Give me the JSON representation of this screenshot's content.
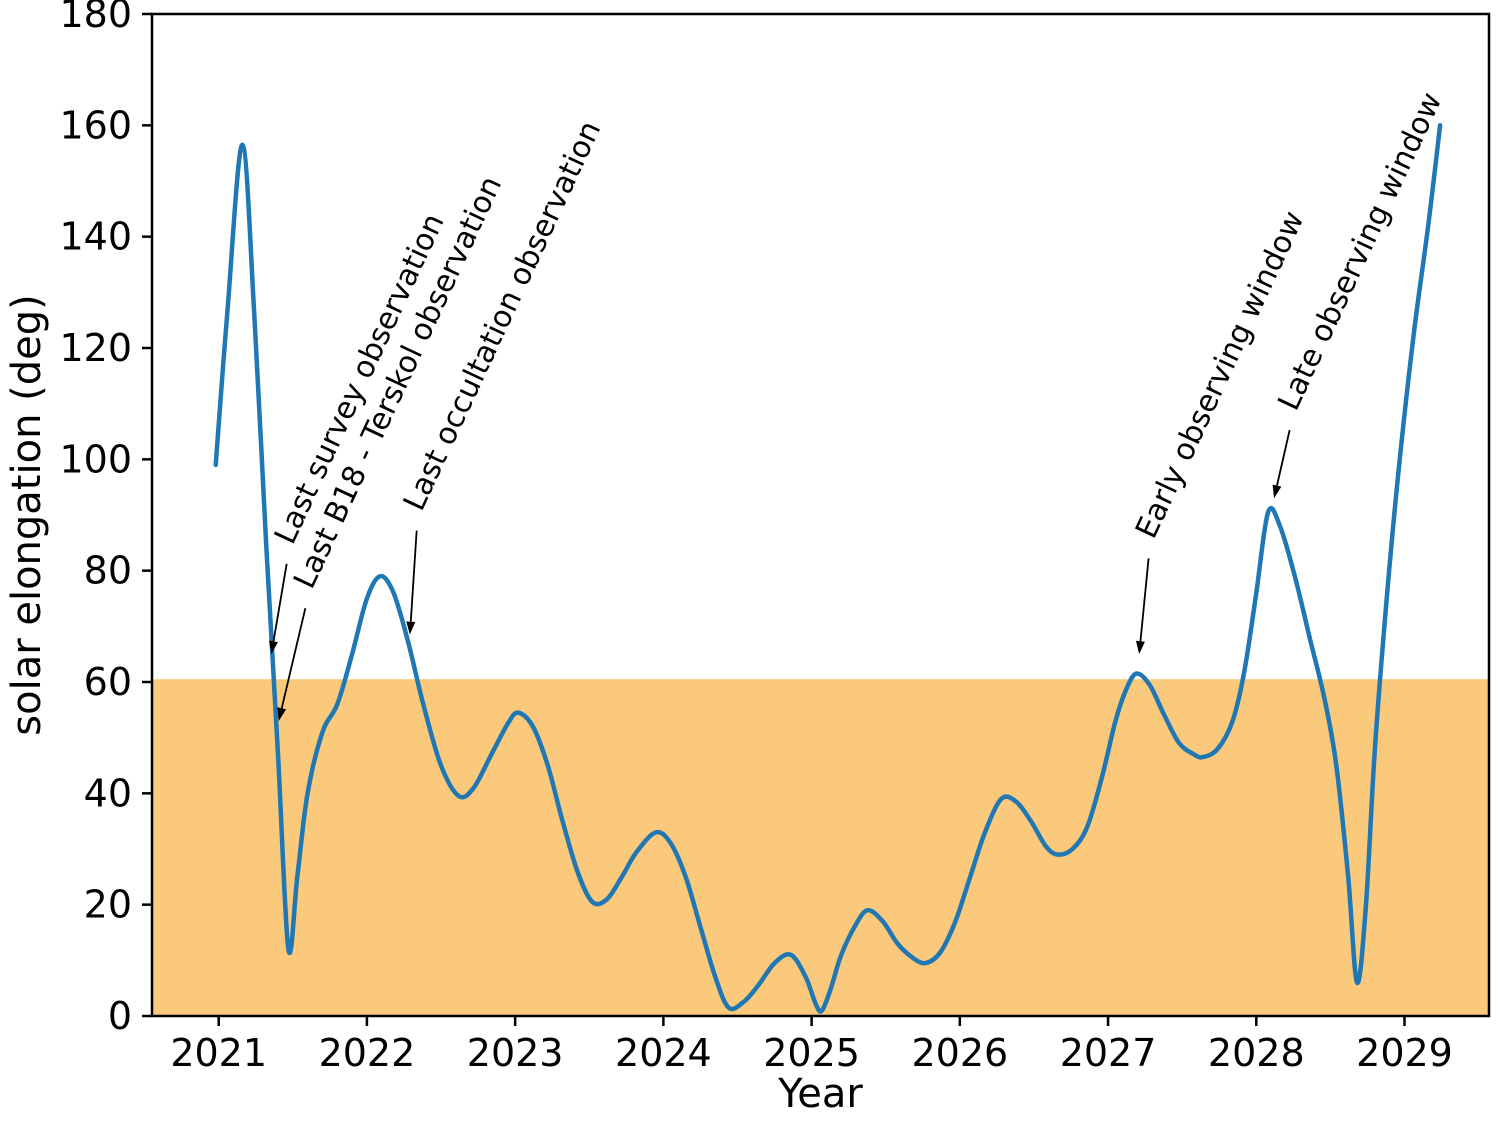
{
  "chart_data": {
    "type": "line",
    "xlabel": "Year",
    "ylabel": "solar elongation (deg)",
    "xlim": [
      2020.55,
      2029.57
    ],
    "ylim": [
      0,
      180
    ],
    "xticks": [
      2021,
      2022,
      2023,
      2024,
      2025,
      2026,
      2027,
      2028,
      2029
    ],
    "yticks": [
      0,
      20,
      40,
      60,
      80,
      100,
      120,
      140,
      160,
      180
    ],
    "grid": false,
    "legend": null,
    "line_color": "#1f77b4",
    "line_width": 4.5,
    "axis_color": "#000000",
    "shaded_region": {
      "ymin": 0,
      "ymax": 60.5,
      "color": "#fac97c"
    },
    "series": [
      {
        "name": "solar elongation",
        "points": [
          [
            2020.98,
            99
          ],
          [
            2021.06,
            127
          ],
          [
            2021.16,
            156.5
          ],
          [
            2021.24,
            126
          ],
          [
            2021.32,
            85
          ],
          [
            2021.4,
            47
          ],
          [
            2021.47,
            12
          ],
          [
            2021.53,
            25
          ],
          [
            2021.6,
            40
          ],
          [
            2021.7,
            51
          ],
          [
            2021.8,
            56
          ],
          [
            2021.9,
            65
          ],
          [
            2022.0,
            75
          ],
          [
            2022.09,
            79
          ],
          [
            2022.18,
            76
          ],
          [
            2022.28,
            67
          ],
          [
            2022.38,
            56
          ],
          [
            2022.5,
            45
          ],
          [
            2022.62,
            39.5
          ],
          [
            2022.72,
            41
          ],
          [
            2022.84,
            47
          ],
          [
            2022.95,
            52.5
          ],
          [
            2023.02,
            54.5
          ],
          [
            2023.12,
            52
          ],
          [
            2023.22,
            45
          ],
          [
            2023.32,
            35
          ],
          [
            2023.42,
            26
          ],
          [
            2023.52,
            20.5
          ],
          [
            2023.62,
            21
          ],
          [
            2023.72,
            25
          ],
          [
            2023.82,
            29.5
          ],
          [
            2023.95,
            33
          ],
          [
            2024.05,
            31
          ],
          [
            2024.15,
            25
          ],
          [
            2024.25,
            16
          ],
          [
            2024.35,
            7
          ],
          [
            2024.44,
            1.5
          ],
          [
            2024.54,
            2.5
          ],
          [
            2024.64,
            5.5
          ],
          [
            2024.75,
            9.5
          ],
          [
            2024.86,
            11
          ],
          [
            2024.96,
            7
          ],
          [
            2025.03,
            2
          ],
          [
            2025.07,
            1
          ],
          [
            2025.13,
            5
          ],
          [
            2025.2,
            11
          ],
          [
            2025.3,
            16.5
          ],
          [
            2025.38,
            19
          ],
          [
            2025.48,
            17
          ],
          [
            2025.58,
            13
          ],
          [
            2025.68,
            10.5
          ],
          [
            2025.77,
            9.5
          ],
          [
            2025.87,
            11.5
          ],
          [
            2025.97,
            17
          ],
          [
            2026.07,
            25
          ],
          [
            2026.17,
            33
          ],
          [
            2026.28,
            39
          ],
          [
            2026.38,
            38.5
          ],
          [
            2026.48,
            35
          ],
          [
            2026.58,
            30.5
          ],
          [
            2026.66,
            29
          ],
          [
            2026.76,
            30
          ],
          [
            2026.86,
            34
          ],
          [
            2026.96,
            43
          ],
          [
            2027.05,
            53
          ],
          [
            2027.12,
            58.5
          ],
          [
            2027.19,
            61.5
          ],
          [
            2027.28,
            59.5
          ],
          [
            2027.38,
            54
          ],
          [
            2027.48,
            49
          ],
          [
            2027.58,
            47
          ],
          [
            2027.64,
            46.5
          ],
          [
            2027.74,
            48
          ],
          [
            2027.84,
            53
          ],
          [
            2027.92,
            62
          ],
          [
            2028.0,
            76
          ],
          [
            2028.08,
            90.5
          ],
          [
            2028.16,
            88
          ],
          [
            2028.26,
            79
          ],
          [
            2028.36,
            68
          ],
          [
            2028.46,
            57
          ],
          [
            2028.54,
            45
          ],
          [
            2028.62,
            25
          ],
          [
            2028.68,
            6
          ],
          [
            2028.74,
            20
          ],
          [
            2028.8,
            48
          ],
          [
            2028.88,
            75
          ],
          [
            2028.96,
            98
          ],
          [
            2029.06,
            122
          ],
          [
            2029.16,
            142
          ],
          [
            2029.24,
            160
          ]
        ]
      }
    ],
    "annotations": [
      {
        "label": "Last survey observation",
        "text_xy": [
          2021.47,
          83
        ],
        "tip_xy": [
          2021.355,
          65
        ],
        "rotation": -65
      },
      {
        "label": "Last B18 - Terskol observation",
        "text_xy": [
          2021.6,
          75
        ],
        "tip_xy": [
          2021.405,
          53
        ],
        "rotation": -65
      },
      {
        "label": "Last occultation observation",
        "text_xy": [
          2022.34,
          89
        ],
        "tip_xy": [
          2022.29,
          68.5
        ],
        "rotation": -65
      },
      {
        "label": "Early observing window",
        "text_xy": [
          2027.28,
          84
        ],
        "tip_xy": [
          2027.21,
          65
        ],
        "rotation": -65
      },
      {
        "label": "Late observing window",
        "text_xy": [
          2028.24,
          107
        ],
        "tip_xy": [
          2028.12,
          93
        ],
        "rotation": -65
      }
    ]
  }
}
